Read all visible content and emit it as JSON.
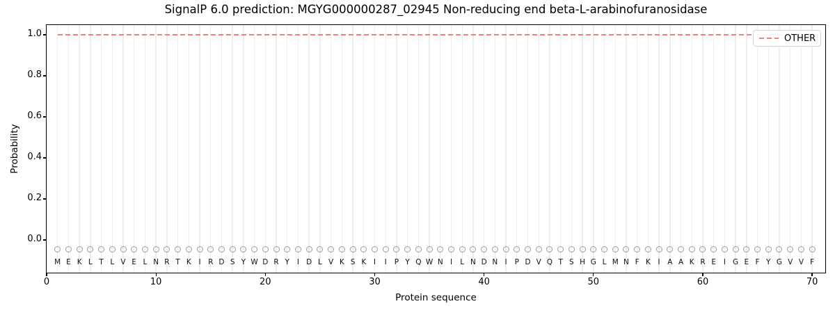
{
  "chart_data": {
    "type": "line",
    "title": "SignalP 6.0 prediction: MGYG000000287_02945 Non-reducing end beta-L-arabinofuranosidase",
    "xlabel": "Protein sequence",
    "ylabel": "Probability",
    "xlim": [
      0,
      71.2
    ],
    "ylim": [
      -0.16,
      1.05
    ],
    "x_ticks": [
      0,
      10,
      20,
      30,
      40,
      50,
      60,
      70
    ],
    "y_ticks": [
      0.0,
      0.2,
      0.4,
      0.6,
      0.8,
      1.0
    ],
    "y_tick_labels": [
      "0.0",
      "0.2",
      "0.4",
      "0.6",
      "0.8",
      "1.0"
    ],
    "grid": "vertical gridline at each residue position 1-70, no horizontal gridlines",
    "legend_position": "upper-right",
    "sequence": "MEKLTLVELNRTKIRDSYWDRYIDLVKSKIIPYQWNILNDNIPDVQTSHGLMNFKIAAKREIGEFYGVVF",
    "series": [
      {
        "name": "OTHER",
        "style": "dashed",
        "color": "#f08080",
        "x_start": 1,
        "x_end": 70,
        "y_constant": 1.0,
        "description": "OTHER probability equals 1.0 at every residue 1-70"
      }
    ],
    "residue_markers": {
      "symbol": "open-circle",
      "y": -0.045,
      "color": "#9a9a9a"
    },
    "sequence_letter_y": -0.108
  },
  "legend": {
    "other_label": "OTHER"
  },
  "colors": {
    "background": "#ffffff",
    "axis": "#000000",
    "grid": "#ededed",
    "other_line": "#f08080",
    "marker_stroke": "#9a9a9a",
    "sequence_letter": "#111111"
  }
}
